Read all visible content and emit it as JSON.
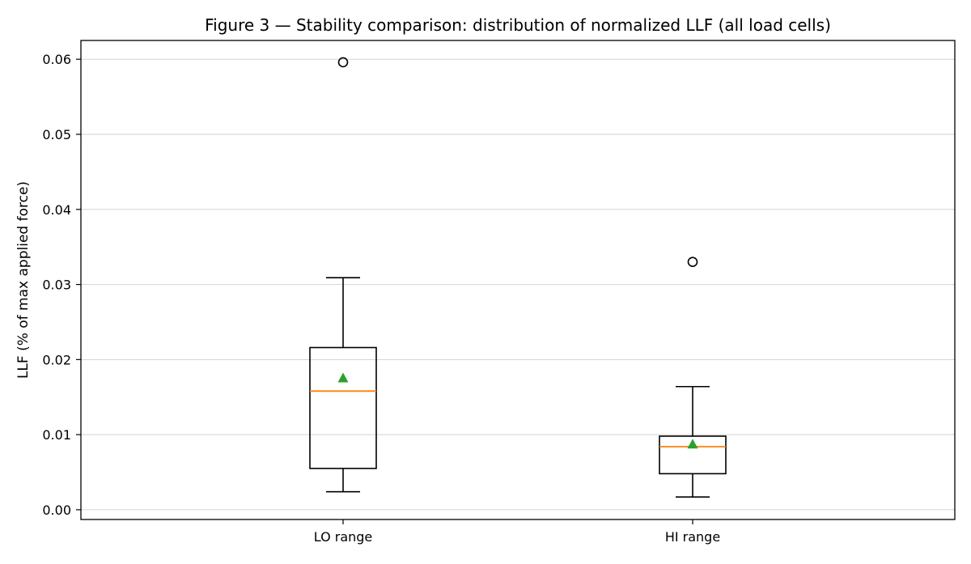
{
  "chart_data": {
    "type": "box",
    "title": "Figure 3 — Stability comparison: distribution of normalized LLF (all load cells)",
    "xlabel": "",
    "ylabel": "LLF (% of max applied force)",
    "ylim": [
      -0.0013,
      0.0625
    ],
    "yticks": [
      0.0,
      0.01,
      0.02,
      0.03,
      0.04,
      0.05,
      0.06
    ],
    "ytick_labels": [
      "0.00",
      "0.01",
      "0.02",
      "0.03",
      "0.04",
      "0.05",
      "0.06"
    ],
    "grid": "y",
    "categories": [
      "LO range",
      "HI range"
    ],
    "boxes": [
      {
        "name": "LO range",
        "whisker_low": 0.0024,
        "q1": 0.0055,
        "median": 0.0158,
        "mean": 0.0175,
        "q3": 0.0216,
        "whisker_high": 0.0309,
        "outliers": [
          0.0596
        ]
      },
      {
        "name": "HI range",
        "whisker_low": 0.0017,
        "q1": 0.0048,
        "median": 0.0084,
        "mean": 0.0087,
        "q3": 0.0098,
        "whisker_high": 0.0164,
        "outliers": [
          0.033
        ]
      }
    ],
    "colors": {
      "median": "#ff7f0e",
      "mean": "#2ca02c",
      "box": "#000000",
      "grid": "#d3d3d3"
    }
  }
}
